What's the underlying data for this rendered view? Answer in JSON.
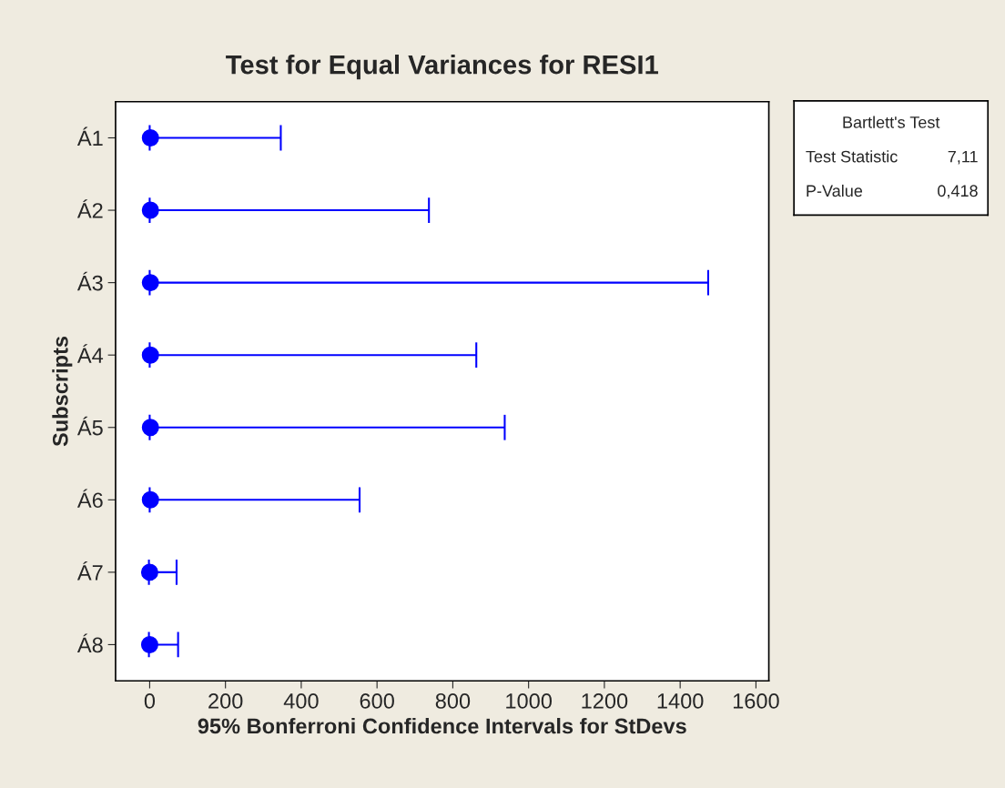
{
  "chart_data": {
    "type": "scatter",
    "title": "Test for Equal Variances for RESI1",
    "xlabel": "95% Bonferroni Confidence Intervals for StDevs",
    "ylabel": "Subscripts",
    "categories": [
      "Á1",
      "Á2",
      "Á3",
      "Á4",
      "Á5",
      "Á6",
      "Á7",
      "Á8"
    ],
    "orientation": "horizontal",
    "values": [
      2,
      2,
      2,
      2,
      2,
      2,
      0,
      0
    ],
    "errors": [
      [
        0,
        346
      ],
      [
        0,
        737
      ],
      [
        0,
        1474
      ],
      [
        0,
        862
      ],
      [
        0,
        937
      ],
      [
        0,
        554
      ],
      [
        -2,
        71
      ],
      [
        -2,
        75
      ]
    ],
    "color": "#0000ff",
    "marker": "circle",
    "grid": false,
    "legend": false,
    "xlim": [
      -90,
      1634
    ],
    "xticks": [
      0,
      200,
      400,
      600,
      800,
      1000,
      1200,
      1400,
      1600
    ],
    "annotations": [
      "Bartlett's Test",
      "Test Statistic",
      "7,11",
      "P-Value",
      "0,418"
    ]
  }
}
